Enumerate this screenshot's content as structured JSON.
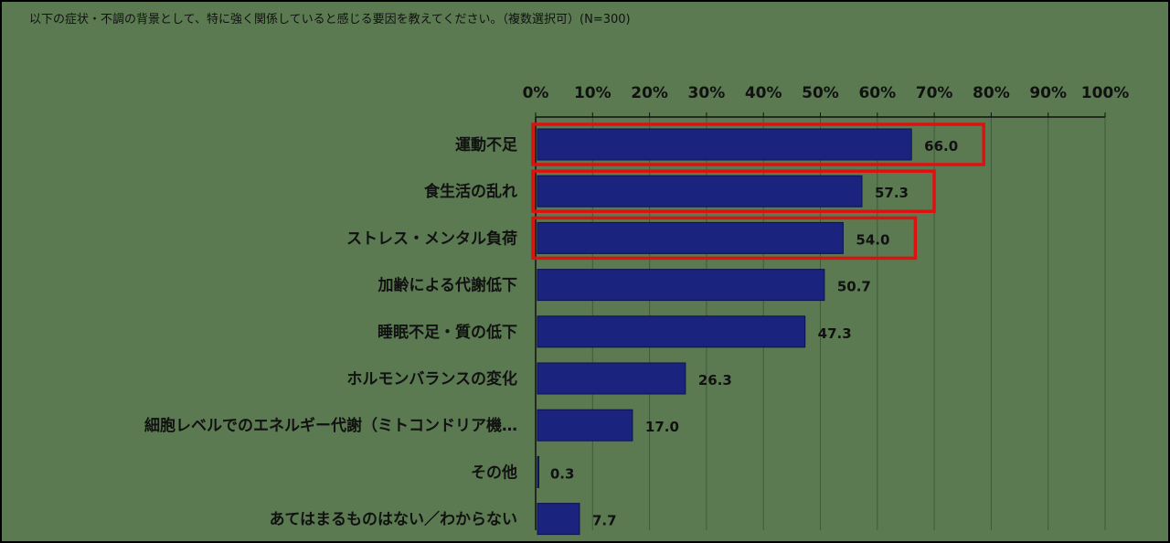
{
  "chart_data": {
    "type": "bar",
    "orientation": "horizontal",
    "title": "以下の症状・不調の背景として、特に強く関係していると感じる要因を教えてください。（複数選択可）(N=300)",
    "categories": [
      "運動不足",
      "食生活の乱れ",
      "ストレス・メンタル負荷",
      "加齢による代謝低下",
      "睡眠不足・質の低下",
      "ホルモンバランスの変化",
      "細胞レベルでのエネルギー代謝（ミトコンドリア機…",
      "その他",
      "あてはまるものはない／わからない"
    ],
    "values": [
      66.0,
      57.3,
      54.0,
      50.7,
      47.3,
      26.3,
      17.0,
      0.3,
      7.7
    ],
    "value_labels": [
      "66.0",
      "57.3",
      "54.0",
      "50.7",
      "47.3",
      "26.3",
      "17.0",
      "0.3",
      "7.7"
    ],
    "highlighted": [
      0,
      1,
      2
    ],
    "xlim": [
      0,
      100
    ],
    "xticks": [
      "0%",
      "10%",
      "20%",
      "30%",
      "40%",
      "50%",
      "60%",
      "70%",
      "80%",
      "90%",
      "100%"
    ],
    "grid": "vertical",
    "axis_position": "top",
    "colors": {
      "background": "#5b7a52",
      "bar": "#1a237e",
      "highlight_box": "#e01010",
      "text": "#111111"
    }
  }
}
